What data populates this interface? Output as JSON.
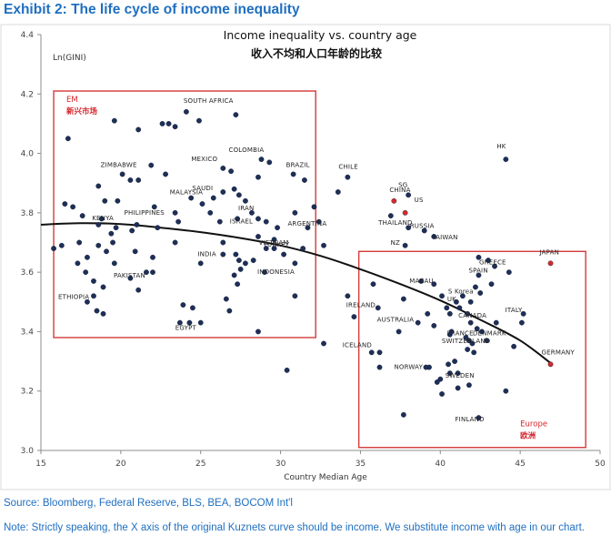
{
  "header": {
    "exhibit_title": "Exhibit 2: The life cycle of income inequality"
  },
  "footer": {
    "source": "Source: Bloomberg, Federal Reserve, BLS, BEA, BOCOM Int'l",
    "note": "Note: Strictly speaking, the X axis of the original Kuznets curve should be income. We substitute income with age in our chart."
  },
  "colors": {
    "dots": "#1e2f57",
    "highlight_dots": "#d42b2b",
    "region_boxes": "#d43a3a",
    "curve": "#111111",
    "title_blue": "#1f6fc0"
  },
  "chart_data": {
    "type": "scatter",
    "title": "Income inequality vs. country age",
    "subtitle": "收入不均和人口年龄的比较",
    "xlabel": "Country Median Age",
    "ylabel": "Ln(GINI)",
    "xlim": [
      15,
      50
    ],
    "ylim": [
      3.0,
      4.4
    ],
    "x_ticks": [
      "15",
      "20",
      "25",
      "30",
      "35",
      "40",
      "45",
      "50"
    ],
    "y_ticks": [
      "3.0",
      "3.2",
      "3.4",
      "3.6",
      "3.8",
      "4.0",
      "4.2",
      "4.4"
    ],
    "grid": false,
    "regions": [
      {
        "label_en": "EM",
        "label_cn": "新兴市场",
        "x_range": [
          15.8,
          32.2
        ],
        "y_range": [
          3.38,
          4.21
        ]
      },
      {
        "label_en": "Europe",
        "label_cn": "欧洲",
        "x_range": [
          34.9,
          49.1
        ],
        "y_range": [
          3.01,
          3.67
        ]
      }
    ],
    "trend_curve": {
      "x": [
        15.0,
        17.5,
        20.0,
        22.5,
        25.0,
        27.5,
        30.0,
        32.5,
        35.0,
        37.5,
        40.0,
        42.5,
        45.0,
        47.0
      ],
      "y": [
        3.76,
        3.765,
        3.762,
        3.75,
        3.735,
        3.715,
        3.69,
        3.655,
        3.61,
        3.56,
        3.505,
        3.44,
        3.37,
        3.29
      ]
    },
    "labeled_points": [
      {
        "name": "SOUTH AFRICA",
        "x": 24.1,
        "y": 4.14
      },
      {
        "name": "MEXICO",
        "x": 26.4,
        "y": 3.95
      },
      {
        "name": "COLOMBIA",
        "x": 28.8,
        "y": 3.98
      },
      {
        "name": "ZIMBABWE",
        "x": 20.1,
        "y": 3.93
      },
      {
        "name": "SAUDI",
        "x": 26.4,
        "y": 3.87
      },
      {
        "name": "MALAYSIA",
        "x": 25.8,
        "y": 3.85
      },
      {
        "name": "PHILIPPINES",
        "x": 23.4,
        "y": 3.8
      },
      {
        "name": "KENYA",
        "x": 18.6,
        "y": 3.76
      },
      {
        "name": "IRAN",
        "x": 28.2,
        "y": 3.8
      },
      {
        "name": "ISRAEL",
        "x": 29.1,
        "y": 3.77
      },
      {
        "name": "BRAZIL",
        "x": 30.8,
        "y": 3.93
      },
      {
        "name": "CHILE",
        "x": 34.2,
        "y": 3.92
      },
      {
        "name": "SG",
        "x": 38.0,
        "y": 3.86
      },
      {
        "name": "ARGENTINA",
        "x": 31.7,
        "y": 3.75
      },
      {
        "name": "TURKEY",
        "x": 29.6,
        "y": 3.68
      },
      {
        "name": "VIETNAM",
        "x": 29.6,
        "y": 3.71
      },
      {
        "name": "INDIA",
        "x": 26.4,
        "y": 3.66
      },
      {
        "name": "INDONESIA",
        "x": 29.0,
        "y": 3.6
      },
      {
        "name": "PAKISTAN",
        "x": 21.6,
        "y": 3.6
      },
      {
        "name": "ETHIOPIA",
        "x": 18.3,
        "y": 3.52
      },
      {
        "name": "EGYPT",
        "x": 25.0,
        "y": 3.43
      },
      {
        "name": "CHINA",
        "x": 37.1,
        "y": 3.84,
        "highlight": true
      },
      {
        "name": "US",
        "x": 37.8,
        "y": 3.8,
        "highlight": true
      },
      {
        "name": "HK",
        "x": 44.1,
        "y": 3.98
      },
      {
        "name": "THAILAND",
        "x": 38.0,
        "y": 3.75
      },
      {
        "name": "RUSSIA",
        "x": 39.0,
        "y": 3.74
      },
      {
        "name": "NZ",
        "x": 37.8,
        "y": 3.69
      },
      {
        "name": "TAIWAN",
        "x": 39.6,
        "y": 3.72
      },
      {
        "name": "GREECE",
        "x": 43.4,
        "y": 3.62
      },
      {
        "name": "JAPAN",
        "x": 46.9,
        "y": 3.63,
        "highlight": true
      },
      {
        "name": "MACAU",
        "x": 39.6,
        "y": 3.56
      },
      {
        "name": "SPAIN",
        "x": 42.4,
        "y": 3.59
      },
      {
        "name": "S Korea",
        "x": 41.4,
        "y": 3.52
      },
      {
        "name": "UK",
        "x": 41.0,
        "y": 3.5
      },
      {
        "name": "CANADA",
        "x": 41.7,
        "y": 3.46
      },
      {
        "name": "ITALY",
        "x": 45.2,
        "y": 3.46
      },
      {
        "name": "IRELAND",
        "x": 36.1,
        "y": 3.48
      },
      {
        "name": "AUSTRALIA",
        "x": 38.6,
        "y": 3.43
      },
      {
        "name": "FRANCE",
        "x": 40.7,
        "y": 3.4
      },
      {
        "name": "DENMARK",
        "x": 42.6,
        "y": 3.4
      },
      {
        "name": "ICELAND",
        "x": 35.7,
        "y": 3.33
      },
      {
        "name": "SWITZERLAND",
        "x": 41.8,
        "y": 3.37
      },
      {
        "name": "NORWAY",
        "x": 39.1,
        "y": 3.28
      },
      {
        "name": "GERMANY",
        "x": 46.9,
        "y": 3.29,
        "highlight": true
      },
      {
        "name": "SWEDEN",
        "x": 41.1,
        "y": 3.26
      },
      {
        "name": "FINLAND",
        "x": 42.4,
        "y": 3.11
      }
    ],
    "points": [
      {
        "x": 16.7,
        "y": 4.05
      },
      {
        "x": 19.6,
        "y": 4.11
      },
      {
        "x": 21.1,
        "y": 4.08
      },
      {
        "x": 22.6,
        "y": 4.1
      },
      {
        "x": 23.0,
        "y": 4.1
      },
      {
        "x": 23.4,
        "y": 4.09
      },
      {
        "x": 24.9,
        "y": 4.11
      },
      {
        "x": 27.2,
        "y": 4.13
      },
      {
        "x": 18.6,
        "y": 3.89
      },
      {
        "x": 19.0,
        "y": 3.84
      },
      {
        "x": 19.8,
        "y": 3.84
      },
      {
        "x": 21.9,
        "y": 3.96
      },
      {
        "x": 20.6,
        "y": 3.91
      },
      {
        "x": 21.1,
        "y": 3.91
      },
      {
        "x": 22.1,
        "y": 3.82
      },
      {
        "x": 22.8,
        "y": 3.93
      },
      {
        "x": 24.4,
        "y": 3.85
      },
      {
        "x": 25.1,
        "y": 3.83
      },
      {
        "x": 25.6,
        "y": 3.8
      },
      {
        "x": 26.9,
        "y": 3.94
      },
      {
        "x": 27.1,
        "y": 3.88
      },
      {
        "x": 27.4,
        "y": 3.86
      },
      {
        "x": 27.8,
        "y": 3.84
      },
      {
        "x": 28.6,
        "y": 3.92
      },
      {
        "x": 29.3,
        "y": 3.97
      },
      {
        "x": 31.5,
        "y": 3.91
      },
      {
        "x": 32.1,
        "y": 3.82
      },
      {
        "x": 33.6,
        "y": 3.87
      },
      {
        "x": 16.5,
        "y": 3.83
      },
      {
        "x": 17.0,
        "y": 3.82
      },
      {
        "x": 17.6,
        "y": 3.79
      },
      {
        "x": 18.8,
        "y": 3.78
      },
      {
        "x": 19.4,
        "y": 3.73
      },
      {
        "x": 19.7,
        "y": 3.75
      },
      {
        "x": 20.7,
        "y": 3.74
      },
      {
        "x": 21.0,
        "y": 3.76
      },
      {
        "x": 22.3,
        "y": 3.75
      },
      {
        "x": 23.6,
        "y": 3.77
      },
      {
        "x": 26.2,
        "y": 3.77
      },
      {
        "x": 27.3,
        "y": 3.78
      },
      {
        "x": 28.6,
        "y": 3.78
      },
      {
        "x": 29.8,
        "y": 3.75
      },
      {
        "x": 30.9,
        "y": 3.8
      },
      {
        "x": 32.4,
        "y": 3.77
      },
      {
        "x": 15.8,
        "y": 3.68
      },
      {
        "x": 16.3,
        "y": 3.69
      },
      {
        "x": 17.4,
        "y": 3.7
      },
      {
        "x": 17.9,
        "y": 3.65
      },
      {
        "x": 18.6,
        "y": 3.69
      },
      {
        "x": 19.1,
        "y": 3.67
      },
      {
        "x": 19.5,
        "y": 3.7
      },
      {
        "x": 20.9,
        "y": 3.67
      },
      {
        "x": 22.0,
        "y": 3.65
      },
      {
        "x": 23.4,
        "y": 3.7
      },
      {
        "x": 25.0,
        "y": 3.63
      },
      {
        "x": 26.4,
        "y": 3.7
      },
      {
        "x": 27.2,
        "y": 3.66
      },
      {
        "x": 27.4,
        "y": 3.64
      },
      {
        "x": 27.5,
        "y": 3.61
      },
      {
        "x": 27.1,
        "y": 3.59
      },
      {
        "x": 27.3,
        "y": 3.56
      },
      {
        "x": 27.8,
        "y": 3.63
      },
      {
        "x": 28.3,
        "y": 3.64
      },
      {
        "x": 28.6,
        "y": 3.72
      },
      {
        "x": 29.1,
        "y": 3.68
      },
      {
        "x": 30.2,
        "y": 3.66
      },
      {
        "x": 30.9,
        "y": 3.63
      },
      {
        "x": 31.4,
        "y": 3.68
      },
      {
        "x": 32.7,
        "y": 3.69
      },
      {
        "x": 17.3,
        "y": 3.63
      },
      {
        "x": 17.8,
        "y": 3.6
      },
      {
        "x": 18.3,
        "y": 3.57
      },
      {
        "x": 18.9,
        "y": 3.55
      },
      {
        "x": 19.6,
        "y": 3.63
      },
      {
        "x": 20.6,
        "y": 3.58
      },
      {
        "x": 21.1,
        "y": 3.54
      },
      {
        "x": 22.0,
        "y": 3.6
      },
      {
        "x": 17.9,
        "y": 3.5
      },
      {
        "x": 18.5,
        "y": 3.47
      },
      {
        "x": 18.9,
        "y": 3.46
      },
      {
        "x": 23.7,
        "y": 3.43
      },
      {
        "x": 23.9,
        "y": 3.49
      },
      {
        "x": 24.3,
        "y": 3.43
      },
      {
        "x": 24.5,
        "y": 3.48
      },
      {
        "x": 26.6,
        "y": 3.51
      },
      {
        "x": 26.8,
        "y": 3.47
      },
      {
        "x": 28.6,
        "y": 3.4
      },
      {
        "x": 30.9,
        "y": 3.52
      },
      {
        "x": 30.4,
        "y": 3.27
      },
      {
        "x": 32.7,
        "y": 3.36
      },
      {
        "x": 34.2,
        "y": 3.52
      },
      {
        "x": 34.6,
        "y": 3.45
      },
      {
        "x": 35.8,
        "y": 3.56
      },
      {
        "x": 36.9,
        "y": 3.79
      },
      {
        "x": 38.8,
        "y": 3.57
      },
      {
        "x": 37.7,
        "y": 3.51
      },
      {
        "x": 39.2,
        "y": 3.46
      },
      {
        "x": 40.1,
        "y": 3.52
      },
      {
        "x": 40.4,
        "y": 3.48
      },
      {
        "x": 40.6,
        "y": 3.46
      },
      {
        "x": 41.2,
        "y": 3.48
      },
      {
        "x": 41.9,
        "y": 3.5
      },
      {
        "x": 42.2,
        "y": 3.55
      },
      {
        "x": 42.5,
        "y": 3.53
      },
      {
        "x": 43.2,
        "y": 3.56
      },
      {
        "x": 44.3,
        "y": 3.6
      },
      {
        "x": 42.4,
        "y": 3.65
      },
      {
        "x": 43.0,
        "y": 3.64
      },
      {
        "x": 41.9,
        "y": 3.43
      },
      {
        "x": 42.3,
        "y": 3.41
      },
      {
        "x": 43.5,
        "y": 3.43
      },
      {
        "x": 45.1,
        "y": 3.43
      },
      {
        "x": 37.4,
        "y": 3.4
      },
      {
        "x": 39.6,
        "y": 3.42
      },
      {
        "x": 40.6,
        "y": 3.39
      },
      {
        "x": 41.6,
        "y": 3.38
      },
      {
        "x": 42.0,
        "y": 3.36
      },
      {
        "x": 42.9,
        "y": 3.37
      },
      {
        "x": 44.6,
        "y": 3.35
      },
      {
        "x": 41.7,
        "y": 3.34
      },
      {
        "x": 42.1,
        "y": 3.33
      },
      {
        "x": 36.2,
        "y": 3.33
      },
      {
        "x": 36.2,
        "y": 3.28
      },
      {
        "x": 39.3,
        "y": 3.28
      },
      {
        "x": 40.5,
        "y": 3.29
      },
      {
        "x": 40.9,
        "y": 3.3
      },
      {
        "x": 40.6,
        "y": 3.26
      },
      {
        "x": 40.0,
        "y": 3.24
      },
      {
        "x": 39.8,
        "y": 3.23
      },
      {
        "x": 41.8,
        "y": 3.22
      },
      {
        "x": 41.1,
        "y": 3.21
      },
      {
        "x": 40.1,
        "y": 3.19
      },
      {
        "x": 44.1,
        "y": 3.2
      },
      {
        "x": 37.7,
        "y": 3.12
      }
    ]
  }
}
